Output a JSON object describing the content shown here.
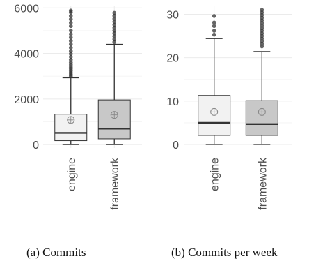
{
  "chart_data": [
    {
      "type": "boxplot",
      "title": "",
      "xlabel": "",
      "ylabel": "",
      "caption": "(a) Commits",
      "ylim": [
        -150,
        6100
      ],
      "yticks": [
        0,
        2000,
        4000,
        6000
      ],
      "grid": true,
      "categories": [
        "engine",
        "framework"
      ],
      "boxes": [
        {
          "category": "engine",
          "fill": "#f2f2f2",
          "whisker_low": 0,
          "q1": 170,
          "median": 510,
          "q3": 1330,
          "whisker_high": 2930,
          "mean": 1080,
          "outliers": [
            3000,
            3070,
            3150,
            3230,
            3320,
            3400,
            3500,
            3600,
            3720,
            3850,
            3980,
            4100,
            4250,
            4400,
            4550,
            4700,
            4850,
            5000,
            5200,
            5350,
            5500,
            5650,
            5800,
            5880
          ]
        },
        {
          "category": "framework",
          "fill": "#c8c8c8",
          "whisker_low": 0,
          "q1": 250,
          "median": 700,
          "q3": 1960,
          "whisker_high": 4400,
          "mean": 1300,
          "outliers": [
            4500,
            4620,
            4750,
            4880,
            5000,
            5130,
            5260,
            5390,
            5520,
            5650,
            5780
          ]
        }
      ]
    },
    {
      "type": "boxplot",
      "title": "",
      "xlabel": "",
      "ylabel": "",
      "caption": "(b) Commits per week",
      "ylim": [
        -0.8,
        32
      ],
      "yticks": [
        0,
        10,
        20,
        30
      ],
      "grid": true,
      "categories": [
        "engine",
        "framework"
      ],
      "boxes": [
        {
          "category": "engine",
          "fill": "#f2f2f2",
          "whisker_low": 0,
          "q1": 2.1,
          "median": 5,
          "q3": 11.3,
          "whisker_high": 24.4,
          "mean": 7.5,
          "outliers": [
            25.3,
            26.2,
            27.3,
            28.1,
            29.6
          ]
        },
        {
          "category": "framework",
          "fill": "#c8c8c8",
          "whisker_low": 0,
          "q1": 2.1,
          "median": 4.7,
          "q3": 10.1,
          "whisker_high": 21.4,
          "mean": 7.5,
          "outliers": [
            22.6,
            23.2,
            23.8,
            24.4,
            25,
            25.6,
            26.2,
            26.8,
            27.4,
            28,
            28.6,
            29.2,
            29.8,
            30.4,
            31
          ]
        }
      ]
    }
  ]
}
